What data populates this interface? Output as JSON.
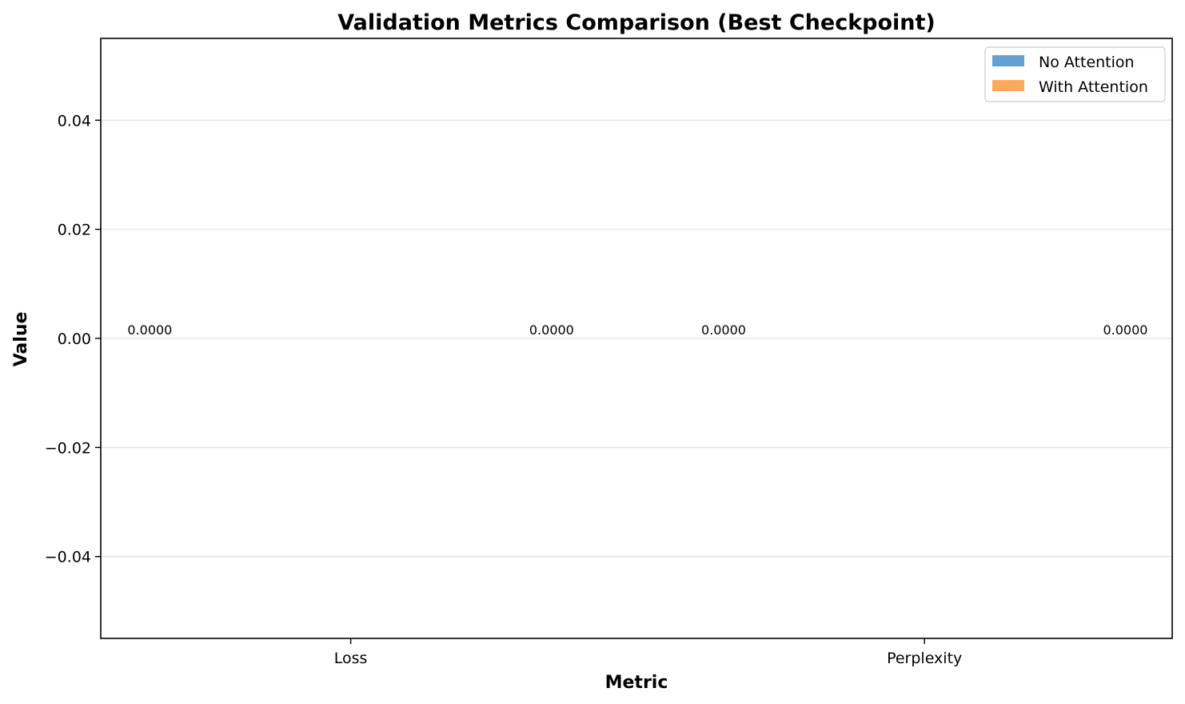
{
  "chart_data": {
    "type": "bar",
    "title": "Validation Metrics Comparison (Best Checkpoint)",
    "xlabel": "Metric",
    "ylabel": "Value",
    "categories": [
      "Loss",
      "Perplexity"
    ],
    "series": [
      {
        "name": "No Attention",
        "values": [
          0.0,
          0.0
        ],
        "color": "#4a90c8"
      },
      {
        "name": "With Attention",
        "values": [
          0.0,
          0.0
        ],
        "color": "#ff9a40"
      }
    ],
    "data_labels": [
      [
        "0.0000",
        "0.0000"
      ],
      [
        "0.0000",
        "0.0000"
      ]
    ],
    "ylim": [
      -0.055,
      0.055
    ],
    "yticks": [
      0.04,
      0.02,
      0.0,
      -0.02,
      -0.04
    ],
    "ytick_labels": [
      "0.04",
      "0.02",
      "0.00",
      "−0.02",
      "−0.04"
    ],
    "grid": "y",
    "legend_position": "top-right"
  }
}
